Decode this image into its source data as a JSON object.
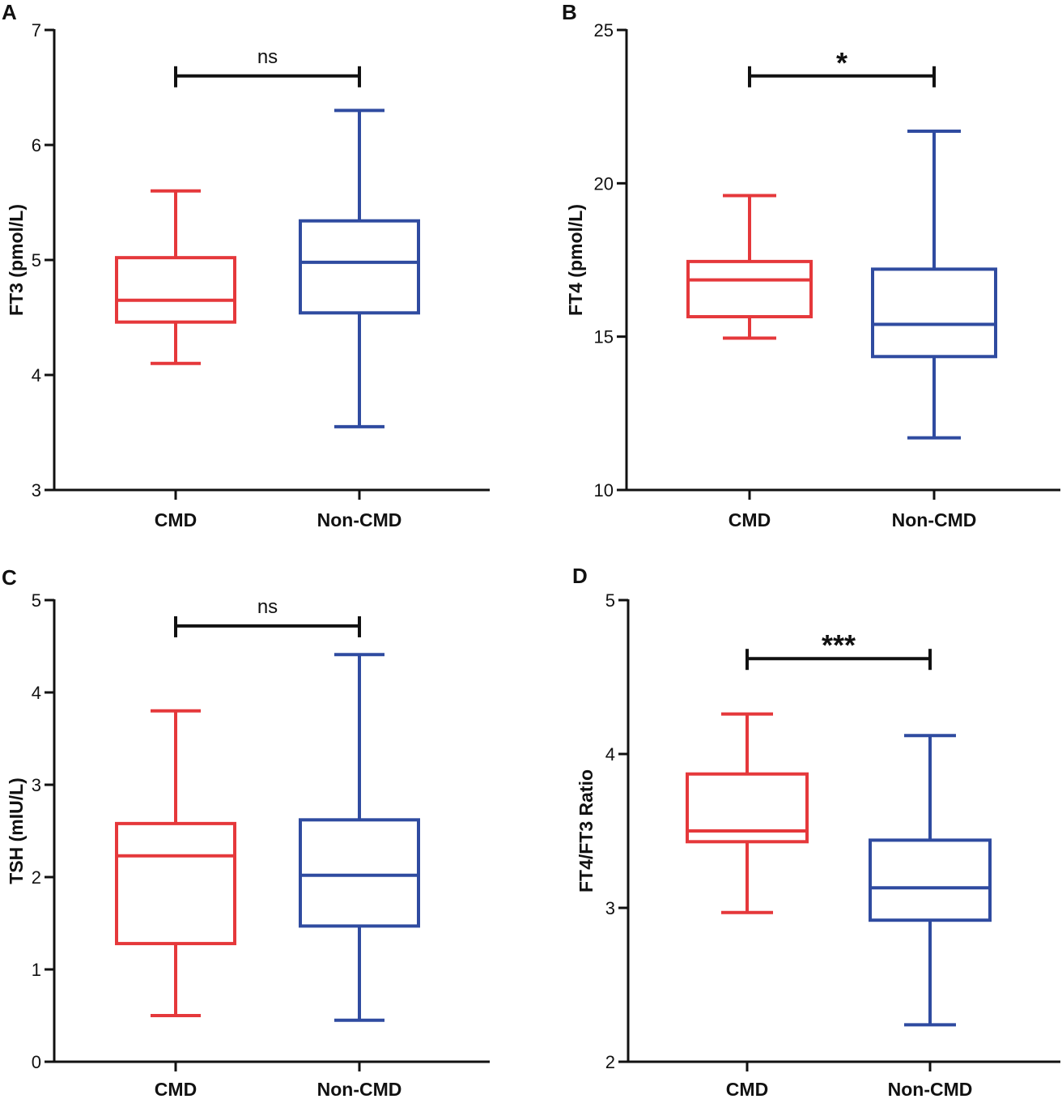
{
  "colors": {
    "cmd": "#e5383b",
    "non_cmd": "#2f4ba0",
    "axis": "#111111"
  },
  "chart_data": [
    {
      "type": "box",
      "panel": "A",
      "ylabel": "FT3 (pmol/L)",
      "ylim": [
        3,
        7
      ],
      "yticks": [
        3,
        4,
        5,
        6,
        7
      ],
      "tick_labels": [
        "3",
        "4",
        "5",
        "6",
        "7"
      ],
      "categories": [
        "CMD",
        "Non-CMD"
      ],
      "boxes": [
        {
          "name": "CMD",
          "min": 4.1,
          "q1": 4.46,
          "median": 4.65,
          "q3": 5.02,
          "max": 5.6
        },
        {
          "name": "Non-CMD",
          "min": 3.55,
          "q1": 4.54,
          "median": 4.98,
          "q3": 5.34,
          "max": 6.3
        }
      ],
      "significance": {
        "label": "ns",
        "y": 6.6
      }
    },
    {
      "type": "box",
      "panel": "B",
      "ylabel": "FT4 (pmol/L)",
      "ylim": [
        10,
        25
      ],
      "yticks": [
        10,
        15,
        20,
        25
      ],
      "tick_labels": [
        "10",
        "15",
        "20",
        "25"
      ],
      "categories": [
        "CMD",
        "Non-CMD"
      ],
      "boxes": [
        {
          "name": "CMD",
          "min": 14.95,
          "q1": 15.65,
          "median": 16.85,
          "q3": 17.45,
          "max": 19.6
        },
        {
          "name": "Non-CMD",
          "min": 11.7,
          "q1": 14.35,
          "median": 15.4,
          "q3": 17.2,
          "max": 21.7
        }
      ],
      "significance": {
        "label": "*",
        "y": 23.5
      }
    },
    {
      "type": "box",
      "panel": "C",
      "ylabel": "TSH (mIU/L)",
      "ylim": [
        0,
        5
      ],
      "yticks": [
        0,
        1,
        2,
        3,
        4,
        5
      ],
      "tick_labels": [
        "0",
        "1",
        "2",
        "3",
        "4",
        "5"
      ],
      "categories": [
        "CMD",
        "Non-CMD"
      ],
      "boxes": [
        {
          "name": "CMD",
          "min": 0.5,
          "q1": 1.28,
          "median": 2.23,
          "q3": 2.58,
          "max": 3.8
        },
        {
          "name": "Non-CMD",
          "min": 0.45,
          "q1": 1.47,
          "median": 2.02,
          "q3": 2.62,
          "max": 4.41
        }
      ],
      "significance": {
        "label": "ns",
        "y": 4.72
      }
    },
    {
      "type": "box",
      "panel": "D",
      "ylabel": "FT4/FT3 Ratio",
      "ylim": [
        2,
        5
      ],
      "yticks": [
        2,
        3,
        4,
        5
      ],
      "tick_labels": [
        "2",
        "3",
        "4",
        "5"
      ],
      "categories": [
        "CMD",
        "Non-CMD"
      ],
      "boxes": [
        {
          "name": "CMD",
          "min": 2.97,
          "q1": 3.43,
          "median": 3.5,
          "q3": 3.87,
          "max": 4.26
        },
        {
          "name": "Non-CMD",
          "min": 2.24,
          "q1": 2.92,
          "median": 3.13,
          "q3": 3.44,
          "max": 4.12
        }
      ],
      "significance": {
        "label": "***",
        "y": 4.62
      }
    }
  ]
}
